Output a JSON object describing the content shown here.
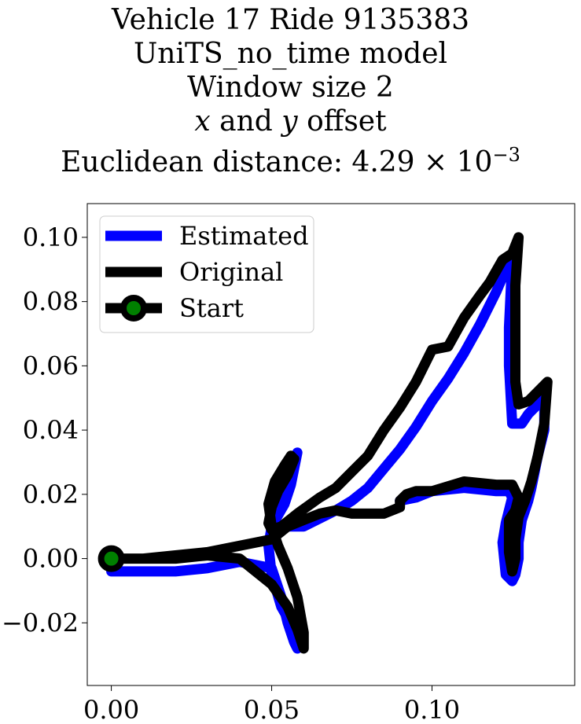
{
  "title_lines": {
    "line1": "Vehicle 17 Ride 9135383",
    "line2": "UniTS_no_time model",
    "line3": "Window size 2",
    "line4_x": "x",
    "line4_and": " and ",
    "line4_y": "y",
    "line4_rest": " offset",
    "line5": "Euclidean distance: 4.29 × 10",
    "line5_exp": "−3"
  },
  "chart_data": {
    "type": "line",
    "title": "Vehicle 17 Ride 9135383 UniTS_no_time model Window size 2 x and y offset Euclidean distance: 4.29×10^-3",
    "xlabel": "",
    "ylabel": "",
    "xlim": [
      -0.0075,
      0.1445
    ],
    "ylim": [
      -0.0395,
      0.1105
    ],
    "xticks": [
      0.0,
      0.05,
      0.1
    ],
    "xtick_labels": [
      "0.00",
      "0.05",
      "0.10"
    ],
    "yticks": [
      -0.02,
      0.0,
      0.02,
      0.04,
      0.06,
      0.08,
      0.1
    ],
    "ytick_labels": [
      "−0.02",
      "0.00",
      "0.02",
      "0.04",
      "0.06",
      "0.08",
      "0.10"
    ],
    "grid": false,
    "legend_position": "top-left",
    "series": [
      {
        "name": "Estimated",
        "color": "#0000ff",
        "x": [
          0.0,
          0.01,
          0.02,
          0.03,
          0.04,
          0.045,
          0.05,
          0.053,
          0.055,
          0.057,
          0.058,
          0.057,
          0.053,
          0.05,
          0.049,
          0.05,
          0.054,
          0.056,
          0.057,
          0.058,
          0.057,
          0.055,
          0.052,
          0.05,
          0.05,
          0.055,
          0.06,
          0.07,
          0.075,
          0.08,
          0.085,
          0.09,
          0.095,
          0.1,
          0.105,
          0.11,
          0.115,
          0.12,
          0.123,
          0.125,
          0.124,
          0.124,
          0.125,
          0.128,
          0.13,
          0.133,
          0.135,
          0.135,
          0.133,
          0.131,
          0.13,
          0.128,
          0.127,
          0.127,
          0.126,
          0.125,
          0.123,
          0.122,
          0.123,
          0.125,
          0.124,
          0.12,
          0.11,
          0.1,
          0.095,
          0.09
        ],
        "y": [
          -0.004,
          -0.004,
          -0.004,
          -0.003,
          -0.001,
          -0.002,
          -0.003,
          -0.012,
          -0.02,
          -0.026,
          -0.028,
          -0.022,
          -0.015,
          -0.005,
          0.004,
          0.01,
          0.017,
          0.023,
          0.028,
          0.033,
          0.03,
          0.022,
          0.016,
          0.011,
          0.01,
          0.01,
          0.01,
          0.015,
          0.018,
          0.022,
          0.028,
          0.034,
          0.041,
          0.049,
          0.056,
          0.064,
          0.073,
          0.083,
          0.09,
          0.093,
          0.072,
          0.06,
          0.042,
          0.042,
          0.045,
          0.048,
          0.05,
          0.04,
          0.032,
          0.022,
          0.018,
          0.012,
          0.005,
          0.0,
          -0.005,
          -0.007,
          -0.005,
          0.005,
          0.011,
          0.019,
          0.021,
          0.021,
          0.022,
          0.021,
          0.019,
          0.018
        ]
      },
      {
        "name": "Original",
        "color": "#000000",
        "x": [
          0.0,
          0.01,
          0.02,
          0.03,
          0.04,
          0.045,
          0.05,
          0.055,
          0.058,
          0.06,
          0.06,
          0.058,
          0.055,
          0.052,
          0.05,
          0.049,
          0.051,
          0.054,
          0.056,
          0.057,
          0.055,
          0.052,
          0.05,
          0.049,
          0.05,
          0.053,
          0.058,
          0.065,
          0.07,
          0.075,
          0.08,
          0.085,
          0.09,
          0.095,
          0.1,
          0.105,
          0.11,
          0.115,
          0.118,
          0.122,
          0.125,
          0.127,
          0.126,
          0.126,
          0.127,
          0.13,
          0.133,
          0.136,
          0.135,
          0.133,
          0.131,
          0.129,
          0.127,
          0.126,
          0.126,
          0.125,
          0.124,
          0.124,
          0.126,
          0.127,
          0.125,
          0.12,
          0.11,
          0.1,
          0.095,
          0.092,
          0.09,
          0.09,
          0.085,
          0.075,
          0.07,
          0.065,
          0.06,
          0.055,
          0.05,
          0.04,
          0.03,
          0.02,
          0.01,
          0.0
        ],
        "y": [
          0.0,
          0.0,
          0.0,
          0.001,
          0.0,
          -0.004,
          -0.008,
          -0.015,
          -0.022,
          -0.028,
          -0.023,
          -0.012,
          -0.003,
          0.004,
          0.01,
          0.017,
          0.024,
          0.029,
          0.032,
          0.031,
          0.026,
          0.021,
          0.016,
          0.011,
          0.009,
          0.01,
          0.014,
          0.019,
          0.022,
          0.027,
          0.032,
          0.04,
          0.047,
          0.055,
          0.065,
          0.066,
          0.075,
          0.082,
          0.086,
          0.093,
          0.095,
          0.1,
          0.085,
          0.055,
          0.048,
          0.049,
          0.052,
          0.055,
          0.042,
          0.032,
          0.024,
          0.018,
          0.013,
          0.006,
          0.0,
          -0.004,
          0.002,
          0.012,
          0.015,
          0.019,
          0.023,
          0.023,
          0.024,
          0.021,
          0.021,
          0.02,
          0.018,
          0.016,
          0.014,
          0.014,
          0.015,
          0.014,
          0.012,
          0.01,
          0.006,
          0.004,
          0.002,
          0.001,
          0.0,
          0.0
        ]
      }
    ],
    "start_point": {
      "name": "Start",
      "x": 0.0,
      "y": 0.0,
      "fill": "#008000",
      "edge": "#000000"
    },
    "legend": [
      "Estimated",
      "Original",
      "Start"
    ]
  }
}
